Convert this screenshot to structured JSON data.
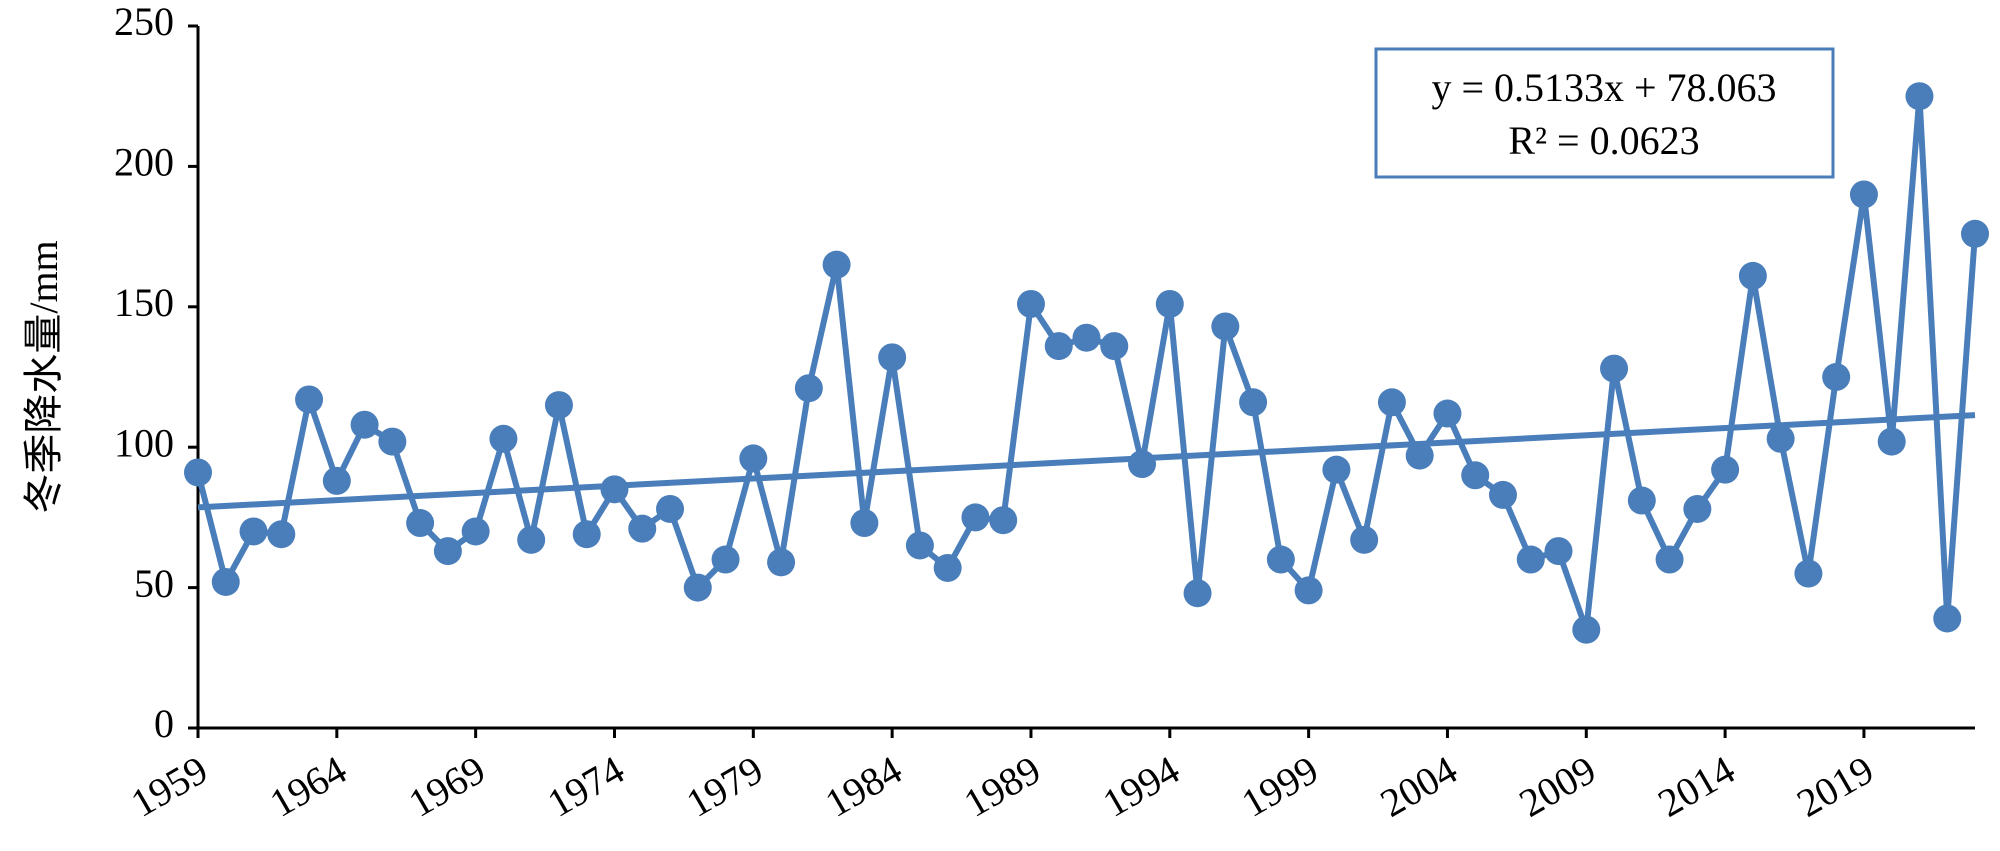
{
  "chart_data": {
    "type": "line",
    "y_label": "冬季降水量/mm",
    "x": [
      1959,
      1960,
      1961,
      1962,
      1963,
      1964,
      1965,
      1966,
      1967,
      1968,
      1969,
      1970,
      1971,
      1972,
      1973,
      1974,
      1975,
      1976,
      1977,
      1978,
      1979,
      1980,
      1981,
      1982,
      1983,
      1984,
      1985,
      1986,
      1987,
      1988,
      1989,
      1990,
      1991,
      1992,
      1993,
      1994,
      1995,
      1996,
      1997,
      1998,
      1999,
      2000,
      2001,
      2002,
      2003,
      2004,
      2005,
      2006,
      2007,
      2008,
      2009,
      2010,
      2011,
      2012,
      2013,
      2014,
      2015,
      2016,
      2017,
      2018,
      2019,
      2020,
      2021,
      2022,
      2023
    ],
    "series": [
      {
        "color": "#4a7ebb",
        "values": [
          91,
          52,
          70,
          69,
          117,
          88,
          108,
          102,
          73,
          63,
          70,
          103,
          67,
          115,
          69,
          85,
          71,
          78,
          50,
          60,
          96,
          59,
          121,
          165,
          73,
          132,
          65,
          57,
          75,
          74,
          151,
          136,
          139,
          136,
          94,
          151,
          48,
          143,
          116,
          60,
          49,
          92,
          67,
          116,
          97,
          112,
          90,
          83,
          60,
          63,
          35,
          128,
          81,
          60,
          78,
          92,
          161,
          103,
          55,
          125,
          190,
          102,
          225,
          39,
          176
        ]
      }
    ],
    "trendline": {
      "slope": 0.5133,
      "intercept": 78.063,
      "origin": 1958
    },
    "annotations": [
      "y = 0.5133x + 78.063",
      "R² = 0.0623"
    ],
    "xlim": [
      1959,
      2023
    ],
    "xticks": [
      1959,
      1964,
      1969,
      1974,
      1979,
      1984,
      1989,
      1994,
      1999,
      2004,
      2009,
      2014,
      2019
    ],
    "ylim": [
      0,
      250
    ],
    "yticks": [
      0,
      50,
      100,
      150,
      200,
      250
    ]
  }
}
